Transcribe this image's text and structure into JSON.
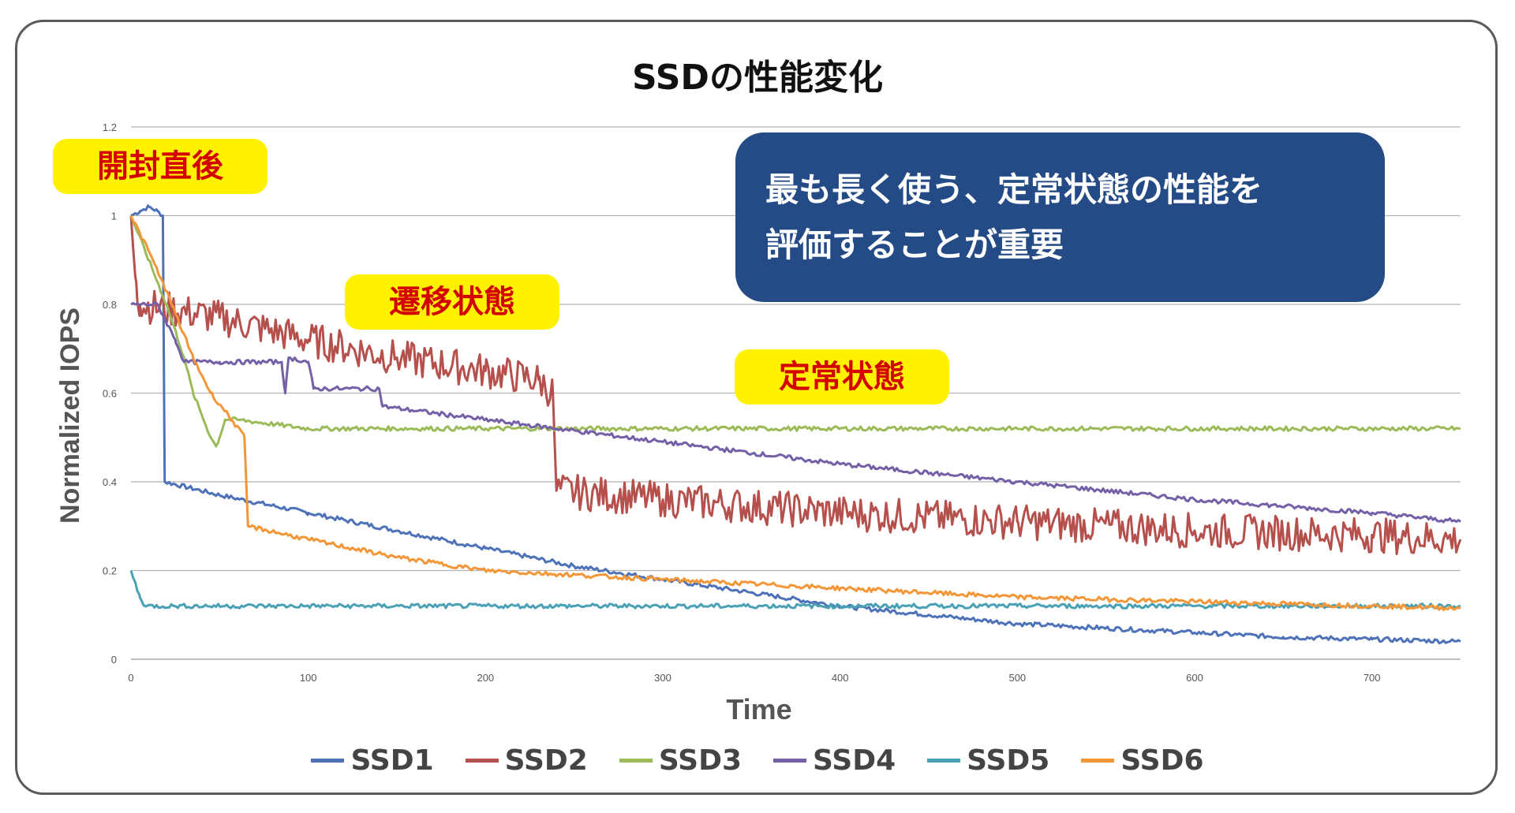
{
  "chart_data": {
    "type": "line",
    "title": "SSDの性能変化",
    "xlabel": "Time",
    "ylabel": "Normalized IOPS",
    "xlim": [
      0,
      750
    ],
    "ylim": [
      0,
      1.2
    ],
    "xticks": [
      0,
      100,
      200,
      300,
      400,
      500,
      600,
      700
    ],
    "yticks": [
      0,
      0.2,
      0.4,
      0.6,
      0.8,
      1,
      1.2
    ],
    "grid": "horizontal",
    "legend_position": "bottom",
    "series": [
      {
        "name": "SSD1",
        "color": "#4e72b8",
        "points": [
          [
            0,
            1.0
          ],
          [
            5,
            1.01
          ],
          [
            10,
            1.02
          ],
          [
            15,
            1.01
          ],
          [
            18,
            1.0
          ],
          [
            19,
            0.4
          ],
          [
            50,
            0.37
          ],
          [
            100,
            0.33
          ],
          [
            150,
            0.29
          ],
          [
            200,
            0.25
          ],
          [
            250,
            0.21
          ],
          [
            300,
            0.18
          ],
          [
            350,
            0.15
          ],
          [
            400,
            0.12
          ],
          [
            450,
            0.1
          ],
          [
            500,
            0.08
          ],
          [
            550,
            0.07
          ],
          [
            600,
            0.06
          ],
          [
            650,
            0.05
          ],
          [
            700,
            0.045
          ],
          [
            750,
            0.04
          ]
        ]
      },
      {
        "name": "SSD2",
        "color": "#b5504c",
        "noise": 0.04,
        "points": [
          [
            0,
            1.0
          ],
          [
            3,
            0.85
          ],
          [
            5,
            0.8
          ],
          [
            50,
            0.77
          ],
          [
            100,
            0.72
          ],
          [
            150,
            0.68
          ],
          [
            200,
            0.65
          ],
          [
            230,
            0.63
          ],
          [
            238,
            0.6
          ],
          [
            240,
            0.38
          ],
          [
            300,
            0.36
          ],
          [
            400,
            0.33
          ],
          [
            500,
            0.31
          ],
          [
            600,
            0.29
          ],
          [
            700,
            0.28
          ],
          [
            750,
            0.27
          ]
        ]
      },
      {
        "name": "SSD3",
        "color": "#9bbb59",
        "points": [
          [
            0,
            1.0
          ],
          [
            10,
            0.9
          ],
          [
            20,
            0.8
          ],
          [
            30,
            0.68
          ],
          [
            35,
            0.6
          ],
          [
            40,
            0.55
          ],
          [
            45,
            0.5
          ],
          [
            48,
            0.48
          ],
          [
            50,
            0.5
          ],
          [
            53,
            0.54
          ],
          [
            60,
            0.54
          ],
          [
            80,
            0.53
          ],
          [
            100,
            0.52
          ],
          [
            200,
            0.52
          ],
          [
            300,
            0.52
          ],
          [
            400,
            0.52
          ],
          [
            500,
            0.52
          ],
          [
            600,
            0.52
          ],
          [
            700,
            0.52
          ],
          [
            750,
            0.52
          ]
        ]
      },
      {
        "name": "SSD4",
        "color": "#7460a6",
        "points": [
          [
            0,
            0.8
          ],
          [
            15,
            0.8
          ],
          [
            25,
            0.72
          ],
          [
            30,
            0.67
          ],
          [
            50,
            0.67
          ],
          [
            85,
            0.67
          ],
          [
            87,
            0.6
          ],
          [
            89,
            0.68
          ],
          [
            100,
            0.67
          ],
          [
            103,
            0.61
          ],
          [
            120,
            0.61
          ],
          [
            140,
            0.61
          ],
          [
            142,
            0.57
          ],
          [
            200,
            0.54
          ],
          [
            300,
            0.49
          ],
          [
            400,
            0.44
          ],
          [
            500,
            0.4
          ],
          [
            600,
            0.36
          ],
          [
            700,
            0.33
          ],
          [
            750,
            0.31
          ]
        ]
      },
      {
        "name": "SSD5",
        "color": "#4aa0b5",
        "points": [
          [
            0,
            0.2
          ],
          [
            5,
            0.14
          ],
          [
            8,
            0.12
          ],
          [
            100,
            0.12
          ],
          [
            200,
            0.12
          ],
          [
            300,
            0.12
          ],
          [
            400,
            0.12
          ],
          [
            500,
            0.12
          ],
          [
            600,
            0.12
          ],
          [
            700,
            0.12
          ],
          [
            750,
            0.12
          ]
        ]
      },
      {
        "name": "SSD6",
        "color": "#f29637",
        "points": [
          [
            0,
            1.0
          ],
          [
            10,
            0.92
          ],
          [
            20,
            0.83
          ],
          [
            25,
            0.78
          ],
          [
            35,
            0.68
          ],
          [
            45,
            0.6
          ],
          [
            55,
            0.55
          ],
          [
            64,
            0.5
          ],
          [
            66,
            0.3
          ],
          [
            100,
            0.27
          ],
          [
            150,
            0.23
          ],
          [
            200,
            0.2
          ],
          [
            300,
            0.18
          ],
          [
            400,
            0.16
          ],
          [
            500,
            0.14
          ],
          [
            600,
            0.13
          ],
          [
            700,
            0.12
          ],
          [
            750,
            0.115
          ]
        ]
      }
    ],
    "annotations": [
      {
        "text": "開封直後",
        "style": "yellow-badge-red-text"
      },
      {
        "text": "遷移状態",
        "style": "yellow-badge-red-text"
      },
      {
        "text": "定常状態",
        "style": "yellow-badge-red-text"
      },
      {
        "lines": [
          "最も長く使う、定常状態の性能を",
          "評価することが重要"
        ],
        "style": "navy-callout-white-text"
      }
    ]
  }
}
